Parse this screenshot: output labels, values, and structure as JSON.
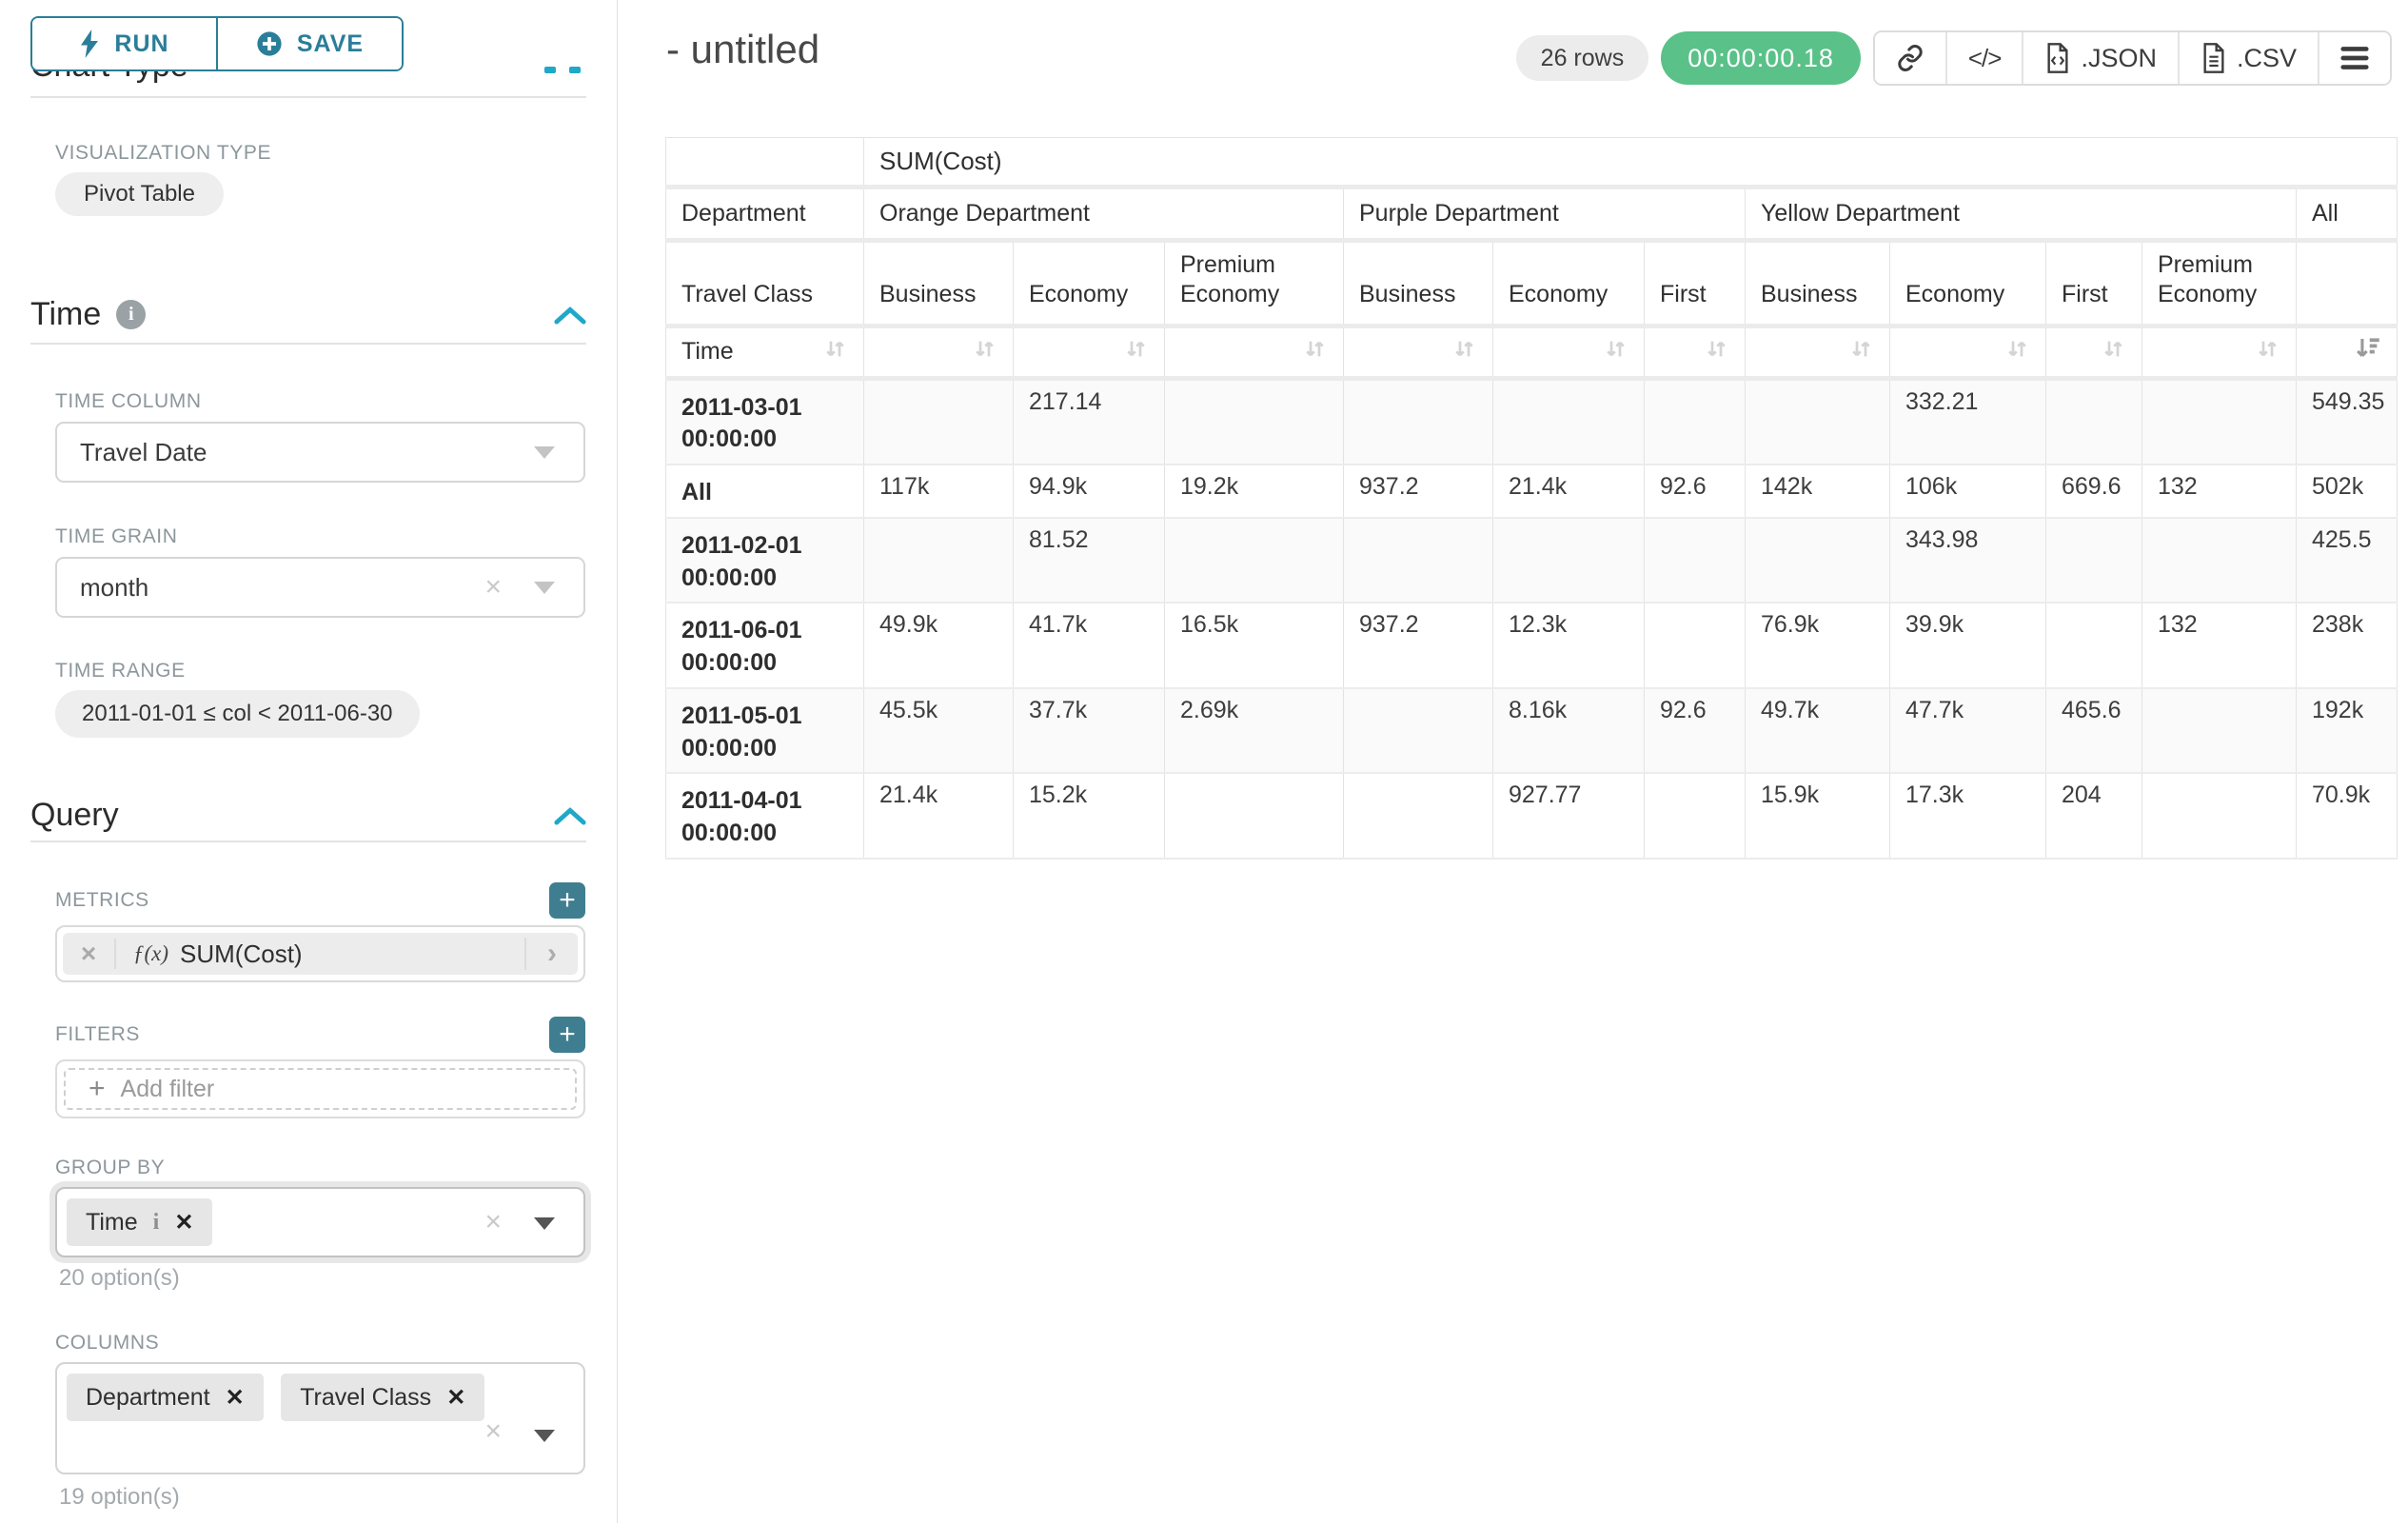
{
  "colors": {
    "accent_teal": "#2A7E99",
    "accent_blue": "#1FA8C9",
    "add_button_teal": "#3F7E91",
    "timer_green": "#5AC189"
  },
  "icons": {
    "clear_x": "×",
    "remove_x": "✕",
    "plus": "+",
    "chevron_right": "›",
    "code": "</>",
    "menu": "≡",
    "fx": "ƒ(x)",
    "info": "i"
  },
  "sidebar": {
    "run_label": "RUN",
    "save_label": "SAVE",
    "chart_type_heading": "Chart Type",
    "visualization_type_label": "VISUALIZATION TYPE",
    "visualization_type_value": "Pivot Table",
    "time": {
      "heading": "Time",
      "time_column_label": "TIME COLUMN",
      "time_column_value": "Travel Date",
      "time_grain_label": "TIME GRAIN",
      "time_grain_value": "month",
      "time_range_label": "TIME RANGE",
      "time_range_value": "2011-01-01 ≤ col < 2011-06-30"
    },
    "query": {
      "heading": "Query",
      "metrics_label": "METRICS",
      "metric_value": "SUM(Cost)",
      "filters_label": "FILTERS",
      "add_filter_label": "Add filter",
      "group_by_label": "GROUP BY",
      "group_by_tags": [
        "Time"
      ],
      "group_by_hint": "20 option(s)",
      "columns_label": "COLUMNS",
      "columns_tags": [
        "Department",
        "Travel Class"
      ],
      "columns_hint": "19 option(s)"
    }
  },
  "header": {
    "title": "- untitled",
    "rows_badge": "26 rows",
    "timer": "00:00:00.18",
    "export_json_label": ".JSON",
    "export_csv_label": ".CSV"
  },
  "pivot": {
    "metric_header": "SUM(Cost)",
    "corner_department": "Department",
    "corner_travel_class": "Travel Class",
    "corner_time": "Time",
    "col_groups": [
      {
        "label": "Orange Department",
        "cols": [
          "Business",
          "Economy",
          "Premium Economy"
        ]
      },
      {
        "label": "Purple Department",
        "cols": [
          "Business",
          "Economy",
          "First"
        ]
      },
      {
        "label": "Yellow Department",
        "cols": [
          "Business",
          "Economy",
          "First",
          "Premium Economy"
        ]
      },
      {
        "label": "All",
        "cols": [
          ""
        ]
      }
    ],
    "sorted_column_index": 10,
    "rows": [
      {
        "label": "2011-03-01 00:00:00",
        "values": [
          "",
          "217.14",
          "",
          "",
          "",
          "",
          "",
          "332.21",
          "",
          "",
          "549.35"
        ]
      },
      {
        "label": "All",
        "values": [
          "117k",
          "94.9k",
          "19.2k",
          "937.2",
          "21.4k",
          "92.6",
          "142k",
          "106k",
          "669.6",
          "132",
          "502k"
        ]
      },
      {
        "label": "2011-02-01 00:00:00",
        "values": [
          "",
          "81.52",
          "",
          "",
          "",
          "",
          "",
          "343.98",
          "",
          "",
          "425.5"
        ]
      },
      {
        "label": "2011-06-01 00:00:00",
        "values": [
          "49.9k",
          "41.7k",
          "16.5k",
          "937.2",
          "12.3k",
          "",
          "76.9k",
          "39.9k",
          "",
          "132",
          "238k"
        ]
      },
      {
        "label": "2011-05-01 00:00:00",
        "values": [
          "45.5k",
          "37.7k",
          "2.69k",
          "",
          "8.16k",
          "92.6",
          "49.7k",
          "47.7k",
          "465.6",
          "",
          "192k"
        ]
      },
      {
        "label": "2011-04-01 00:00:00",
        "values": [
          "21.4k",
          "15.2k",
          "",
          "",
          "927.77",
          "",
          "15.9k",
          "17.3k",
          "204",
          "",
          "70.9k"
        ]
      }
    ]
  }
}
